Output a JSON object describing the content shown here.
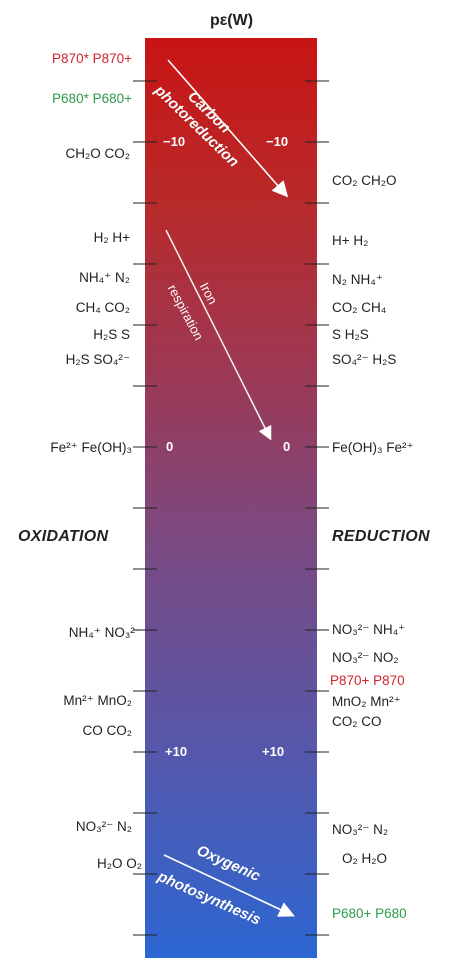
{
  "title": "pε(W)",
  "side_labels": {
    "left": "OXIDATION",
    "right": "REDUCTION"
  },
  "scale_labels": [
    "−10",
    "0",
    "+10"
  ],
  "arrows": [
    {
      "line1": "Carbon",
      "line2": "photoreduction"
    },
    {
      "line1": "Iron",
      "line2": "respiration"
    },
    {
      "line1": "Oxygenic",
      "line2": "photosynthesis"
    }
  ],
  "left_pairs": {
    "p870": "P870* P870+",
    "p680": "P680* P680+",
    "ch2o": "CH₂O CO₂",
    "h2": "H₂ H+",
    "nh4": "NH₄⁺ N₂",
    "ch4": "CH₄ CO₂",
    "h2s_s": "H₂S S",
    "h2s_so4": "H₂S SO₄²⁻",
    "fe": "Fe²⁺ Fe(OH)₃",
    "nh4_no3": "NH₄⁺ NO₃²⁻",
    "mn": "Mn²⁺ MnO₂",
    "co": "CO CO₂",
    "no3_n2": "NO₃²⁻ N₂",
    "h2o": "H₂O O₂"
  },
  "right_pairs": {
    "co2": "CO₂ CH₂O",
    "h": "H+ H₂",
    "n2": "N₂ NH₄⁺",
    "co2ch4": "CO₂ CH₄",
    "s": "S H₂S",
    "so4": "SO₄²⁻ H₂S",
    "feoh": "Fe(OH)₃ Fe²⁺",
    "no3_nh4": "NO₃²⁻ NH₄⁺",
    "no3_no2": "NO₃²⁻ NO₂",
    "p870": "P870+ P870",
    "mno2": "MnO₂ Mn²⁺",
    "co2co": "CO₂ CO",
    "no3_n2": "NO₃²⁻ N₂",
    "o2": "O₂ H₂O",
    "p680": "P680+ P680"
  },
  "colors": {
    "bar_top": "#c81e1e",
    "bar_bottom": "#2c66d2",
    "red_text": "#d0262b",
    "green_text": "#2e9b4a"
  }
}
